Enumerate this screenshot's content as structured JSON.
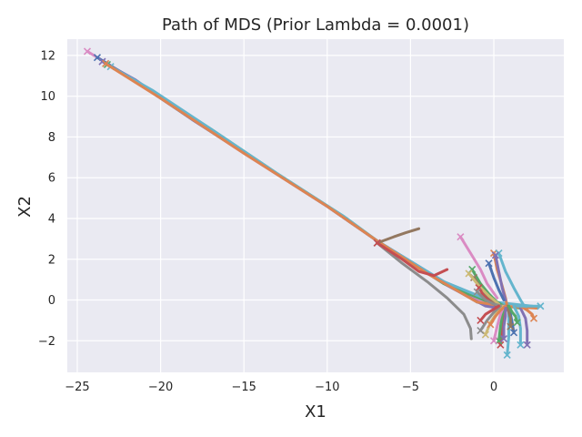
{
  "chart_data": {
    "type": "line",
    "title": "Path of MDS (Prior Lambda = 0.0001)",
    "xlabel": "X1",
    "ylabel": "X2",
    "xlim": [
      -25.6,
      4.2
    ],
    "ylim": [
      -3.55,
      12.8
    ],
    "xticks": [
      -25,
      -20,
      -15,
      -10,
      -5,
      0
    ],
    "xtick_labels": [
      "−25",
      "−20",
      "−15",
      "−10",
      "−5",
      "0"
    ],
    "yticks": [
      -2,
      0,
      2,
      4,
      6,
      8,
      10,
      12
    ],
    "ytick_labels": [
      "−2",
      "0",
      "2",
      "4",
      "6",
      "8",
      "10",
      "12"
    ],
    "grid": true,
    "background": "#eaeaf2",
    "grid_color": "#ffffff",
    "palette": [
      "#4c72b0",
      "#dd8452",
      "#55a868",
      "#c44e52",
      "#8172b3",
      "#937860",
      "#da8bc3",
      "#8c8c8c",
      "#ccb974",
      "#64b5cd"
    ],
    "series": [
      {
        "color": "#da8bc3",
        "x": [
          -24.4,
          -23.0,
          -20.0,
          -15.0,
          -10.0,
          -7.0,
          -4.5,
          -1.5,
          -0.3
        ],
        "y": [
          12.2,
          11.5,
          9.9,
          7.2,
          4.6,
          2.9,
          1.6,
          0.2,
          -0.2
        ]
      },
      {
        "color": "#4c72b0",
        "x": [
          -23.8,
          -22.0,
          -18.0,
          -14.0,
          -10.0,
          -7.0,
          -3.0,
          -1.0,
          0.4
        ],
        "y": [
          11.9,
          11.0,
          8.8,
          6.7,
          4.6,
          2.9,
          0.9,
          -0.1,
          -0.4
        ]
      },
      {
        "color": "#8172b3",
        "x": [
          -23.5,
          -21.5,
          -18.0,
          -14.0,
          -10.0,
          -7.0,
          -3.0,
          -0.5,
          1.0
        ],
        "y": [
          11.7,
          10.8,
          8.8,
          6.7,
          4.6,
          2.9,
          0.8,
          -0.3,
          -0.5
        ]
      },
      {
        "color": "#55a868",
        "x": [
          -23.2,
          -21.0,
          -17.0,
          -13.0,
          -9.0,
          -7.0,
          -3.0,
          0.0,
          1.6
        ],
        "y": [
          11.55,
          10.5,
          8.4,
          6.2,
          4.1,
          2.9,
          0.8,
          -0.2,
          -0.4
        ]
      },
      {
        "color": "#64b5cd",
        "x": [
          -23.0,
          -20.5,
          -17.0,
          -13.0,
          -9.0,
          -7.0,
          -3.0,
          0.0,
          2.3
        ],
        "y": [
          11.45,
          10.3,
          8.4,
          6.2,
          4.1,
          2.9,
          0.9,
          -0.1,
          -0.3
        ]
      },
      {
        "color": "#dd8452",
        "x": [
          -23.3,
          -20.0,
          -15.0,
          -10.0,
          -7.0,
          -4.0,
          -1.0,
          0.5,
          2.6
        ],
        "y": [
          11.6,
          9.9,
          7.2,
          4.6,
          2.9,
          1.3,
          -0.1,
          -0.3,
          -0.4
        ]
      },
      {
        "color": "#937860",
        "x": [
          -7.0,
          -6.0,
          -5.3,
          -4.5
        ],
        "y": [
          2.8,
          3.1,
          3.3,
          3.5
        ]
      },
      {
        "color": "#8c8c8c",
        "x": [
          -7.0,
          -5.5,
          -4.0,
          -2.8,
          -1.8,
          -1.4,
          -1.35
        ],
        "y": [
          2.8,
          1.8,
          0.9,
          0.1,
          -0.7,
          -1.4,
          -1.9
        ]
      },
      {
        "color": "#c44e52",
        "x": [
          -7.0,
          -5.5,
          -4.5,
          -3.6,
          -2.8
        ],
        "y": [
          2.8,
          2.0,
          1.4,
          1.2,
          1.5
        ]
      },
      {
        "color": "#da8bc3",
        "x": [
          -2.0,
          -1.4,
          -0.8,
          -0.4,
          0.2
        ],
        "y": [
          3.1,
          2.3,
          1.5,
          0.8,
          0.1
        ]
      },
      {
        "color": "#dd8452",
        "x": [
          0.0,
          0.2,
          0.5,
          0.7,
          0.8
        ],
        "y": [
          2.3,
          1.5,
          0.7,
          0.1,
          -0.3
        ]
      },
      {
        "color": "#64b5cd",
        "x": [
          0.3,
          0.7,
          1.2,
          1.6,
          1.9
        ],
        "y": [
          2.3,
          1.4,
          0.6,
          0.0,
          -0.4
        ]
      },
      {
        "color": "#8172b3",
        "x": [
          0.1,
          0.3,
          0.5,
          0.7
        ],
        "y": [
          2.2,
          1.4,
          0.6,
          0.0
        ]
      },
      {
        "color": "#55a868",
        "x": [
          -1.3,
          -0.8,
          -0.3,
          0.2,
          0.6
        ],
        "y": [
          1.5,
          0.8,
          0.3,
          -0.1,
          -0.3
        ]
      },
      {
        "color": "#937860",
        "x": [
          -1.2,
          -0.7,
          -0.2,
          0.3
        ],
        "y": [
          1.1,
          0.5,
          0.0,
          -0.3
        ]
      },
      {
        "color": "#ccb974",
        "x": [
          -1.5,
          -0.9,
          -0.3,
          0.3
        ],
        "y": [
          1.3,
          0.7,
          0.2,
          -0.2
        ]
      },
      {
        "color": "#4c72b0",
        "x": [
          -0.3,
          0.0,
          0.3,
          0.6
        ],
        "y": [
          1.8,
          1.1,
          0.5,
          0.0
        ]
      },
      {
        "color": "#c44e52",
        "x": [
          -0.9,
          -0.6,
          -0.2,
          0.2
        ],
        "y": [
          0.6,
          0.2,
          -0.1,
          -0.3
        ]
      },
      {
        "color": "#8c8c8c",
        "x": [
          -1.0,
          -0.5,
          0.0,
          0.5
        ],
        "y": [
          0.4,
          0.0,
          -0.2,
          -0.3
        ]
      },
      {
        "color": "#64b5cd",
        "x": [
          0.8,
          0.9,
          0.9,
          0.9
        ],
        "y": [
          -2.7,
          -1.8,
          -0.9,
          -0.3
        ]
      },
      {
        "color": "#64b5cd",
        "x": [
          1.6,
          1.6,
          1.5,
          1.2
        ],
        "y": [
          -2.2,
          -1.4,
          -0.8,
          -0.3
        ]
      },
      {
        "color": "#8172b3",
        "x": [
          2.0,
          2.0,
          1.9,
          1.6
        ],
        "y": [
          -2.2,
          -1.5,
          -0.9,
          -0.4
        ]
      },
      {
        "color": "#dd8452",
        "x": [
          2.4,
          2.3,
          2.0,
          1.6
        ],
        "y": [
          -0.9,
          -0.7,
          -0.5,
          -0.3
        ]
      },
      {
        "color": "#c44e52",
        "x": [
          0.4,
          0.5,
          0.6,
          0.7
        ],
        "y": [
          -2.2,
          -1.5,
          -0.9,
          -0.4
        ]
      },
      {
        "color": "#55a868",
        "x": [
          0.3,
          0.4,
          0.5,
          0.6
        ],
        "y": [
          -2.0,
          -1.3,
          -0.8,
          -0.3
        ]
      },
      {
        "color": "#da8bc3",
        "x": [
          0.0,
          0.2,
          0.4,
          0.6
        ],
        "y": [
          -2.0,
          -1.3,
          -0.7,
          -0.3
        ]
      },
      {
        "color": "#ccb974",
        "x": [
          -0.5,
          -0.2,
          0.2,
          0.5
        ],
        "y": [
          -1.7,
          -1.1,
          -0.6,
          -0.3
        ]
      },
      {
        "color": "#8c8c8c",
        "x": [
          -0.8,
          -0.4,
          0.0,
          0.4
        ],
        "y": [
          -1.5,
          -1.0,
          -0.6,
          -0.3
        ]
      },
      {
        "color": "#c44e52",
        "x": [
          -0.8,
          -0.5,
          -0.1,
          0.3
        ],
        "y": [
          -1.0,
          -0.7,
          -0.5,
          -0.3
        ]
      },
      {
        "color": "#4c72b0",
        "x": [
          1.2,
          1.1,
          1.0,
          0.9
        ],
        "y": [
          -1.6,
          -1.1,
          -0.7,
          -0.4
        ]
      },
      {
        "color": "#937860",
        "x": [
          1.0,
          1.0,
          0.9,
          0.8
        ],
        "y": [
          -1.3,
          -0.9,
          -0.6,
          -0.3
        ]
      },
      {
        "color": "#55a868",
        "x": [
          1.4,
          1.3,
          1.1,
          0.9
        ],
        "y": [
          -1.1,
          -0.8,
          -0.6,
          -0.3
        ]
      },
      {
        "color": "#64b5cd",
        "x": [
          2.8,
          2.4,
          1.9,
          1.4
        ],
        "y": [
          -0.3,
          -0.3,
          -0.3,
          -0.3
        ]
      },
      {
        "color": "#dd8452",
        "x": [
          -0.2,
          0.1,
          0.4,
          0.7
        ],
        "y": [
          -1.2,
          -0.8,
          -0.5,
          -0.3
        ]
      },
      {
        "color": "#8172b3",
        "x": [
          0.6,
          0.6,
          0.7,
          0.7
        ],
        "y": [
          -1.9,
          -1.3,
          -0.8,
          -0.4
        ]
      }
    ]
  }
}
